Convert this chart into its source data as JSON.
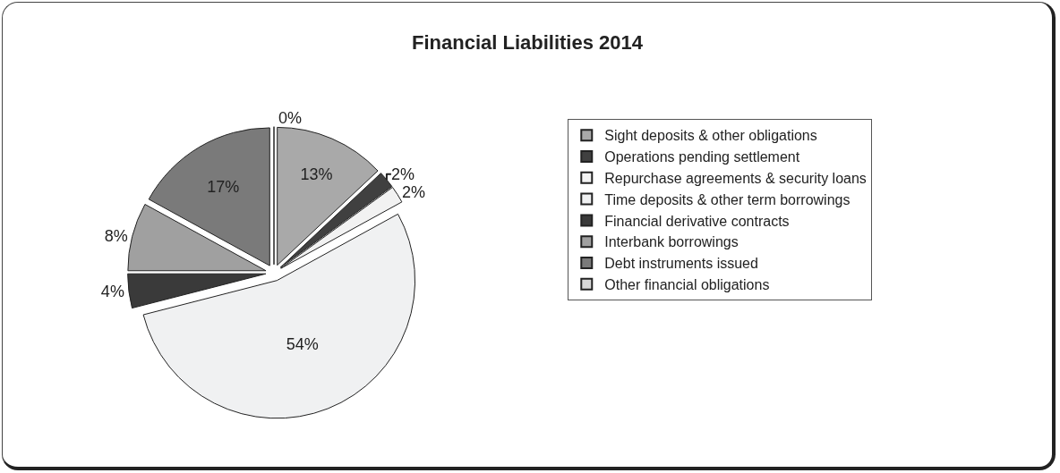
{
  "chart_data": {
    "type": "pie",
    "title": "Financial Liabilities 2014",
    "categories": [
      "Sight deposits & other obligations",
      "Operations pending settlement",
      "Repurchase agreements & security loans",
      "Time deposits & other term borrowings",
      "Financial derivative contracts",
      "Interbank borrowings",
      "Debt instruments issued",
      "Other financial obligations"
    ],
    "values": [
      13,
      2,
      2,
      54,
      4,
      8,
      17,
      0
    ],
    "value_labels": [
      "13%",
      "2%",
      "2%",
      "54%",
      "4%",
      "8%",
      "17%",
      "0%"
    ],
    "colors": [
      "#a9a9a9",
      "#404040",
      "#f2f2f2",
      "#f0f1f2",
      "#3a3a3a",
      "#a0a0a0",
      "#7a7a7a",
      "#d8d8d8"
    ],
    "legend": "right"
  }
}
